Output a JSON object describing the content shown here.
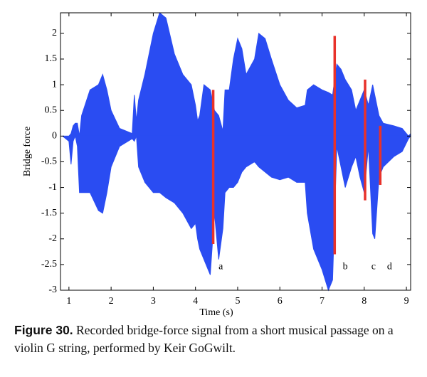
{
  "chart_data": {
    "type": "band",
    "xlabel": "Time (s)",
    "ylabel": "Bridge force",
    "xlim": [
      0.8,
      9.1
    ],
    "xticks": [
      1,
      2,
      3,
      4,
      5,
      6,
      7,
      8,
      9
    ],
    "ylim": [
      -3,
      2.4
    ],
    "yticks": [
      -3,
      -2.5,
      -2,
      -1.5,
      -1,
      -0.5,
      0,
      0.5,
      1,
      1.5,
      2
    ],
    "x": [
      0.85,
      1.0,
      1.05,
      1.1,
      1.15,
      1.2,
      1.25,
      1.3,
      1.5,
      1.7,
      1.8,
      1.9,
      2.0,
      2.2,
      2.5,
      2.55,
      2.6,
      2.65,
      2.8,
      3.0,
      3.15,
      3.3,
      3.5,
      3.7,
      3.9,
      4.0,
      4.05,
      4.1,
      4.2,
      4.35,
      4.45,
      4.55,
      4.65,
      4.7,
      4.8,
      4.9,
      5.0,
      5.1,
      5.2,
      5.4,
      5.5,
      5.65,
      5.8,
      6.0,
      6.2,
      6.4,
      6.6,
      6.65,
      6.8,
      7.0,
      7.15,
      7.25,
      7.35,
      7.45,
      7.55,
      7.7,
      7.8,
      7.9,
      8.0,
      8.1,
      8.2,
      8.25,
      8.35,
      8.45,
      8.7,
      8.9,
      9.05,
      9.1
    ],
    "series": [
      {
        "color": "#2a4cf2",
        "values": [
          0,
          0,
          0.05,
          0.2,
          0.25,
          0.25,
          0,
          0.4,
          0.9,
          1.0,
          1.2,
          0.9,
          0.5,
          0.15,
          0.05,
          0.8,
          0.3,
          0.7,
          1.2,
          2.0,
          2.4,
          2.3,
          1.6,
          1.2,
          1.0,
          0.6,
          0.3,
          0.4,
          1.0,
          0.9,
          0.5,
          0.4,
          0.1,
          0.9,
          0.9,
          1.5,
          1.9,
          1.7,
          1.2,
          1.5,
          2.0,
          1.9,
          1.5,
          1.0,
          0.7,
          0.55,
          0.6,
          0.9,
          1.0,
          0.9,
          0.85,
          0.8,
          1.4,
          1.3,
          1.1,
          0.9,
          0.5,
          0.7,
          0.9,
          0.6,
          1.0,
          0.8,
          0.4,
          0.25,
          0.2,
          0.15,
          0,
          0.05
        ]
      },
      {
        "color": "#2a4cf2",
        "values": [
          0,
          -0.1,
          -0.55,
          -0.1,
          0,
          -0.2,
          -1.1,
          -1.1,
          -1.1,
          -1.45,
          -1.5,
          -1.1,
          -0.6,
          -0.2,
          -0.05,
          -0.1,
          0,
          -0.6,
          -0.9,
          -1.1,
          -1.1,
          -1.2,
          -1.3,
          -1.5,
          -1.8,
          -1.7,
          -2.0,
          -2.2,
          -2.4,
          -2.7,
          -1.5,
          -2.4,
          -1.8,
          -1.1,
          -1.0,
          -1.0,
          -0.9,
          -0.7,
          -0.6,
          -0.5,
          -0.6,
          -0.7,
          -0.8,
          -0.85,
          -0.8,
          -0.9,
          -0.9,
          -1.5,
          -2.2,
          -2.6,
          -3.0,
          -2.8,
          -0.2,
          -0.6,
          -1.0,
          -0.6,
          -0.4,
          -0.8,
          -1.1,
          -0.2,
          -1.9,
          -2.0,
          -0.8,
          -0.6,
          -0.4,
          -0.3,
          -0.05,
          0
        ]
      }
    ],
    "highlights": {
      "color": "#e8322a",
      "items": [
        {
          "x": 4.42,
          "values": [
            -2.1,
            0.9
          ]
        },
        {
          "x": 7.3,
          "values": [
            -2.3,
            1.95
          ]
        },
        {
          "x": 8.02,
          "values": [
            -1.25,
            1.1
          ]
        },
        {
          "x": 8.38,
          "values": [
            -0.95,
            0.2
          ]
        }
      ]
    },
    "annotations": [
      {
        "text": "a",
        "x": 4.6,
        "y": -2.55
      },
      {
        "text": "b",
        "x": 7.55,
        "y": -2.55
      },
      {
        "text": "c",
        "x": 8.22,
        "y": -2.55
      },
      {
        "text": "d",
        "x": 8.6,
        "y": -2.55
      }
    ]
  },
  "caption": {
    "label": "Figure 30.",
    "text": "Recorded bridge-force signal from a short musical passage on a violin G string, performed by Keir GoGwilt."
  }
}
